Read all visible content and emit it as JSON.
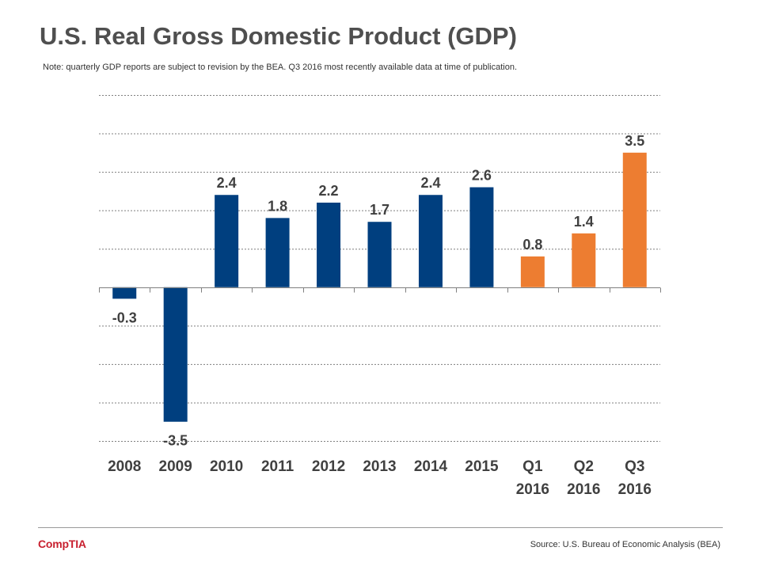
{
  "slide": {
    "title": "U.S. Real Gross Domestic Product (GDP)",
    "note": "Note:  quarterly GDP reports are subject to revision by the BEA.  Q3 2016 most recently available data at time of publication.",
    "logo": "CompTIA",
    "source": "Source: U.S. Bureau of Economic Analysis (BEA)"
  },
  "colors": {
    "annual": "#003f7f",
    "quarterly": "#ed7d31",
    "label": "#404040",
    "grid": "#7f7f7f",
    "axis": "#7f7f7f",
    "logo": "#c8202f"
  },
  "chart_data": {
    "type": "bar",
    "title": "",
    "xlabel": "",
    "ylabel": "",
    "ylim": [
      -4,
      5
    ],
    "grid": true,
    "categories": [
      [
        "2008"
      ],
      [
        "2009"
      ],
      [
        "2010"
      ],
      [
        "2011"
      ],
      [
        "2012"
      ],
      [
        "2013"
      ],
      [
        "2014"
      ],
      [
        "2015"
      ],
      [
        "Q1",
        "2016"
      ],
      [
        "Q2",
        "2016"
      ],
      [
        "Q3",
        "2016"
      ]
    ],
    "values": [
      -0.3,
      -3.5,
      2.4,
      1.8,
      2.2,
      1.7,
      2.4,
      2.6,
      0.8,
      1.4,
      3.5
    ],
    "value_labels": [
      "-0.3",
      "-3.5",
      "2.4",
      "1.8",
      "2.2",
      "1.7",
      "2.4",
      "2.6",
      "0.8",
      "1.4",
      "3.5"
    ],
    "bar_colors": [
      "annual",
      "annual",
      "annual",
      "annual",
      "annual",
      "annual",
      "annual",
      "annual",
      "quarterly",
      "quarterly",
      "quarterly"
    ]
  }
}
